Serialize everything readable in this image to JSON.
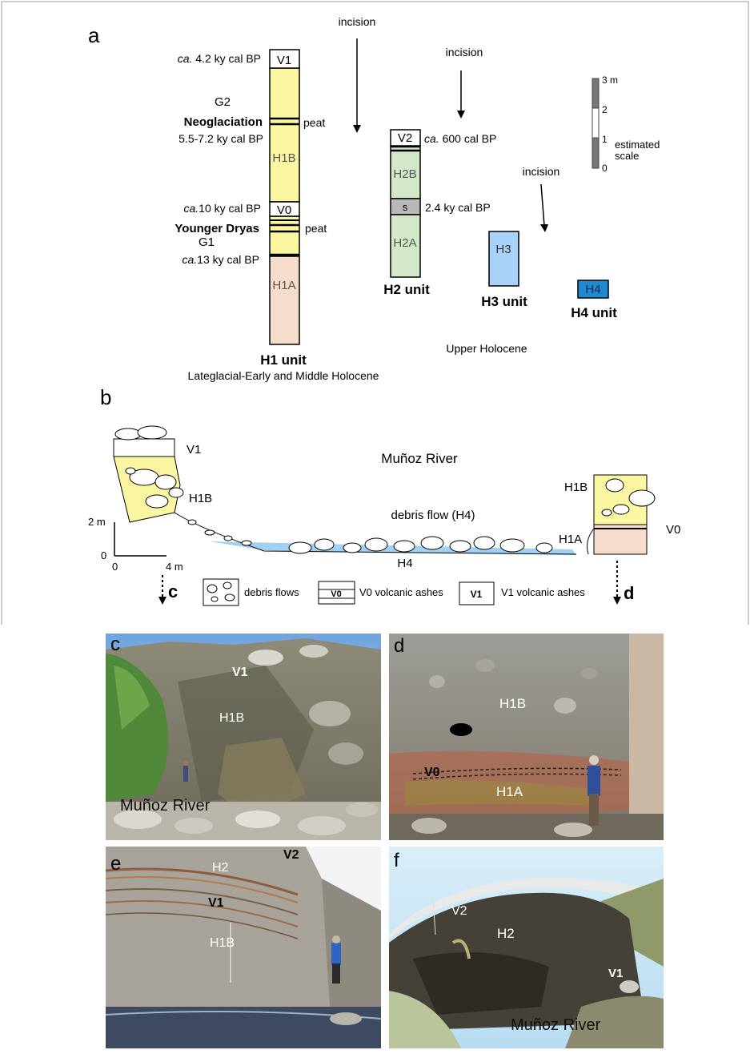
{
  "panel_a": {
    "letter": "a",
    "incision_label": "incision",
    "units": {
      "h1": {
        "title": "H1 unit",
        "subtitle": "Lateglacial-Early and Middle Holocene",
        "upper": "H1B",
        "lower": "H1A",
        "ash_top": "V1",
        "ash_mid": "V0",
        "color_upper": "#fbf6a2",
        "color_lower": "#f5dccb"
      },
      "h2": {
        "title": "H2 unit",
        "upper": "H2B",
        "lower": "H2A",
        "ash_top": "V2",
        "soil": "s",
        "color": "#d3e8c9"
      },
      "h3": {
        "title": "H3 unit",
        "label": "H3",
        "color": "#a8d2f7"
      },
      "h4": {
        "title": "H4 unit",
        "label": "H4",
        "color": "#1f8ad2"
      }
    },
    "left_labels": {
      "v1_age_prefix": "ca.",
      "v1_age": " 4.2 ky cal BP",
      "g2": "G2",
      "neoglaciation": "Neoglaciation",
      "neoglaciation_age": "5.5-7.2 ky cal BP",
      "v0_age_prefix": "ca.",
      "v0_age": "10 ky cal BP",
      "younger_dryas": "Younger Dryas",
      "g1": "G1",
      "g1_age_prefix": "ca.",
      "g1_age": "13 ky cal BP"
    },
    "peat_label": "peat",
    "h2_labels": {
      "v2_age_prefix": "ca.",
      "v2_age": " 600 cal BP",
      "soil_age": "2.4 ky cal BP"
    },
    "upper_holocene": "Upper Holocene",
    "scale": {
      "ticks": [
        "3 m",
        "2",
        "1",
        "0"
      ],
      "label_line1": "estimated",
      "label_line2": "scale"
    }
  },
  "panel_b": {
    "letter": "b",
    "river": "Muñoz River",
    "debris_flow": "debris flow (H4)",
    "labels": {
      "v1": "V1",
      "h1b_left": "H1B",
      "h1b_right": "H1B",
      "h1a": "H1A",
      "v0": "V0",
      "h4": "H4"
    },
    "scale": {
      "y2": "2 m",
      "y0": "0",
      "x0": "0",
      "x4": "4 m"
    },
    "photo_refs": {
      "left": "c",
      "right": "d"
    },
    "legend": {
      "debris": "debris flows",
      "v0_symbol": "V0",
      "v0_text": "V0 volcanic ashes",
      "v1_symbol": "V1",
      "v1_text": "V1 volcanic ashes"
    }
  },
  "photos": {
    "c": {
      "letter": "c",
      "labels": [
        "V1",
        "H1B",
        "Muñoz River"
      ]
    },
    "d": {
      "letter": "d",
      "labels": [
        "H1B",
        "V0",
        "H1A"
      ]
    },
    "e": {
      "letter": "e",
      "labels": [
        "H2",
        "V2",
        "V1",
        "H1B"
      ]
    },
    "f": {
      "letter": "f",
      "labels": [
        "V2",
        "H2",
        "V1",
        "Muñoz River"
      ]
    }
  }
}
